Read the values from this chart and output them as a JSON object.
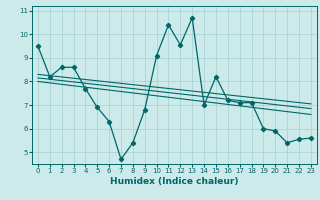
{
  "bg_color": "#cceaea",
  "grid_color": "#aad4d4",
  "line_color": "#006666",
  "xlabel": "Humidex (Indice chaleur)",
  "xlim": [
    -0.5,
    23.5
  ],
  "ylim": [
    4.5,
    11.2
  ],
  "yticks": [
    5,
    6,
    7,
    8,
    9,
    10,
    11
  ],
  "xticks": [
    0,
    1,
    2,
    3,
    4,
    5,
    6,
    7,
    8,
    9,
    10,
    11,
    12,
    13,
    14,
    15,
    16,
    17,
    18,
    19,
    20,
    21,
    22,
    23
  ],
  "main_series_x": [
    0,
    1,
    2,
    3,
    4,
    5,
    6,
    7,
    8,
    9,
    10,
    11,
    12,
    13,
    14,
    15,
    16,
    17,
    18,
    19,
    20,
    21,
    22,
    23
  ],
  "main_series_y": [
    9.5,
    8.2,
    8.6,
    8.6,
    7.7,
    6.9,
    6.3,
    4.7,
    5.4,
    6.8,
    9.1,
    10.4,
    9.55,
    10.7,
    7.0,
    8.2,
    7.2,
    7.1,
    7.1,
    6.0,
    5.9,
    5.4,
    5.55,
    5.6
  ],
  "trend1_x": [
    0,
    23
  ],
  "trend1_y": [
    8.3,
    7.05
  ],
  "trend2_x": [
    0,
    23
  ],
  "trend2_y": [
    8.15,
    6.85
  ],
  "trend3_x": [
    0,
    23
  ],
  "trend3_y": [
    8.0,
    6.6
  ],
  "marker": "D",
  "markersize": 2.2,
  "linewidth": 0.9,
  "tick_fontsize": 5.0,
  "xlabel_fontsize": 6.5
}
